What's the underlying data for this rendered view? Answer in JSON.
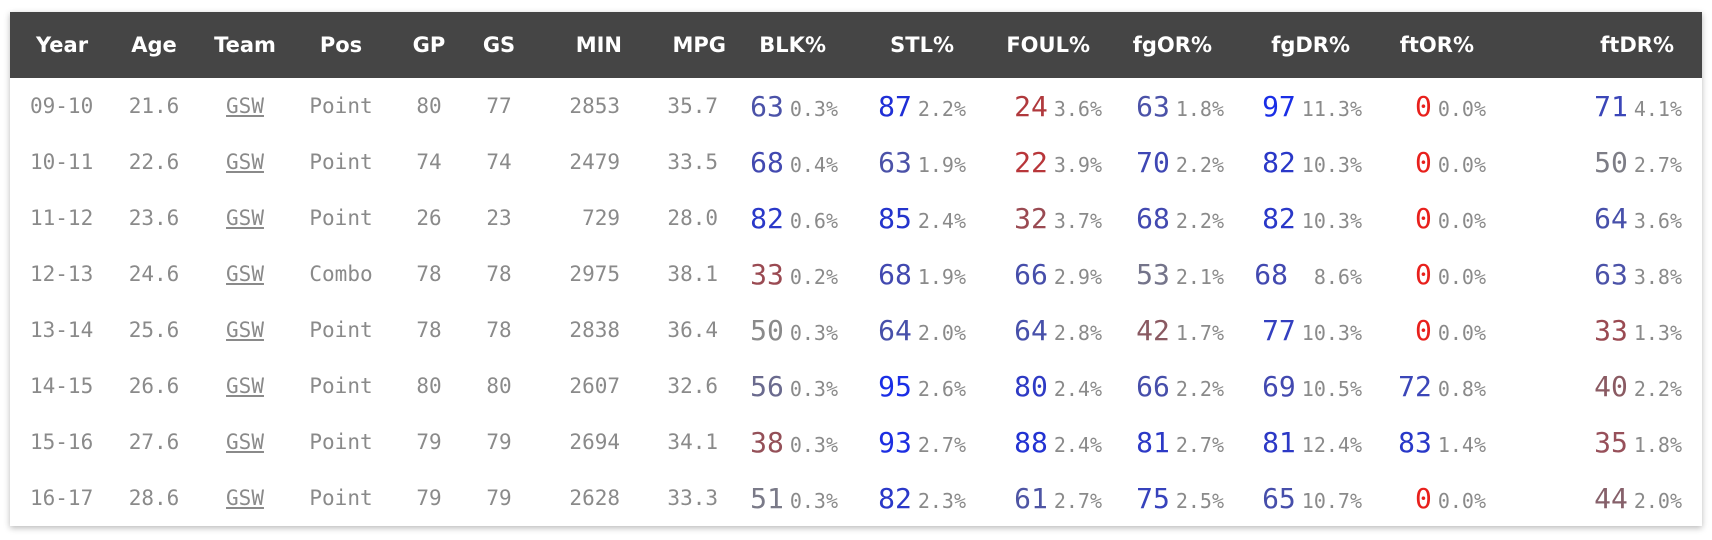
{
  "columns": [
    {
      "key": "year",
      "label": "Year"
    },
    {
      "key": "age",
      "label": "Age"
    },
    {
      "key": "team",
      "label": "Team"
    },
    {
      "key": "pos",
      "label": "Pos"
    },
    {
      "key": "gp",
      "label": "GP"
    },
    {
      "key": "gs",
      "label": "GS"
    },
    {
      "key": "min",
      "label": "MIN"
    },
    {
      "key": "mpg",
      "label": "MPG"
    },
    {
      "key": "blk",
      "label": "BLK%"
    },
    {
      "key": "stl",
      "label": "STL%"
    },
    {
      "key": "foul",
      "label": "FOUL%"
    },
    {
      "key": "fgor",
      "label": "fgOR%"
    },
    {
      "key": "fgdr",
      "label": "fgDR%"
    },
    {
      "key": "ftor",
      "label": "ftOR%"
    },
    {
      "key": "ftdr",
      "label": "ftDR%"
    }
  ],
  "rows": [
    {
      "year": "09-10",
      "age": "21.6",
      "team": "GSW",
      "pos": "Point",
      "gp": "80",
      "gs": "77",
      "min": "2853",
      "mpg": "35.7",
      "blk": {
        "rank": "63",
        "value": "0.3%",
        "color": "#4b52a8"
      },
      "stl": {
        "rank": "87",
        "value": "2.2%",
        "color": "#1f2fd6"
      },
      "foul": {
        "rank": "24",
        "value": "3.6%",
        "color": "#b0393d"
      },
      "fgor": {
        "rank": "63",
        "value": "1.8%",
        "color": "#4b52a8"
      },
      "fgdr": {
        "rank": "97",
        "value": "11.3%",
        "color": "#1a2ee6"
      },
      "ftor": {
        "rank": "0",
        "value": "0.0%",
        "color": "#e8201c"
      },
      "ftdr": {
        "rank": "71",
        "value": "4.1%",
        "color": "#3b46b8"
      }
    },
    {
      "year": "10-11",
      "age": "22.6",
      "team": "GSW",
      "pos": "Point",
      "gp": "74",
      "gs": "74",
      "min": "2479",
      "mpg": "33.5",
      "blk": {
        "rank": "68",
        "value": "0.4%",
        "color": "#4249b0"
      },
      "stl": {
        "rank": "63",
        "value": "1.9%",
        "color": "#4b52a8"
      },
      "foul": {
        "rank": "22",
        "value": "3.9%",
        "color": "#b8363a"
      },
      "fgor": {
        "rank": "70",
        "value": "2.2%",
        "color": "#3e47b4"
      },
      "fgdr": {
        "rank": "82",
        "value": "10.3%",
        "color": "#2a38c8"
      },
      "ftor": {
        "rank": "0",
        "value": "0.0%",
        "color": "#e8201c"
      },
      "ftdr": {
        "rank": "50",
        "value": "2.7%",
        "color": "#7d7d86"
      }
    },
    {
      "year": "11-12",
      "age": "23.6",
      "team": "GSW",
      "pos": "Point",
      "gp": "26",
      "gs": "23",
      "min": "729",
      "mpg": "28.0",
      "blk": {
        "rank": "82",
        "value": "0.6%",
        "color": "#2a38c8"
      },
      "stl": {
        "rank": "85",
        "value": "2.4%",
        "color": "#2434cc"
      },
      "foul": {
        "rank": "32",
        "value": "3.7%",
        "color": "#9a4a52"
      },
      "fgor": {
        "rank": "68",
        "value": "2.2%",
        "color": "#4249b0"
      },
      "fgdr": {
        "rank": "82",
        "value": "10.3%",
        "color": "#2a38c8"
      },
      "ftor": {
        "rank": "0",
        "value": "0.0%",
        "color": "#e8201c"
      },
      "ftdr": {
        "rank": "64",
        "value": "3.6%",
        "color": "#4750aa"
      }
    },
    {
      "year": "12-13",
      "age": "24.6",
      "team": "GSW",
      "pos": "Combo",
      "gp": "78",
      "gs": "78",
      "min": "2975",
      "mpg": "38.1",
      "blk": {
        "rank": "33",
        "value": "0.2%",
        "color": "#9a4a52"
      },
      "stl": {
        "rank": "68",
        "value": "1.9%",
        "color": "#4249b0"
      },
      "foul": {
        "rank": "66",
        "value": "2.9%",
        "color": "#464eaa"
      },
      "fgor": {
        "rank": "53",
        "value": "2.1%",
        "color": "#74748a"
      },
      "fgdr": {
        "rank": "68",
        "value": "8.6%",
        "color": "#4249b0"
      },
      "ftor": {
        "rank": "0",
        "value": "0.0%",
        "color": "#e8201c"
      },
      "ftdr": {
        "rank": "63",
        "value": "3.8%",
        "color": "#4b52a8"
      }
    },
    {
      "year": "13-14",
      "age": "25.6",
      "team": "GSW",
      "pos": "Point",
      "gp": "78",
      "gs": "78",
      "min": "2838",
      "mpg": "36.4",
      "blk": {
        "rank": "50",
        "value": "0.3%",
        "color": "#8a8a8a"
      },
      "stl": {
        "rank": "64",
        "value": "2.0%",
        "color": "#4750aa"
      },
      "foul": {
        "rank": "64",
        "value": "2.8%",
        "color": "#4750aa"
      },
      "fgor": {
        "rank": "42",
        "value": "1.7%",
        "color": "#8a5a62"
      },
      "fgdr": {
        "rank": "77",
        "value": "10.3%",
        "color": "#333fc0"
      },
      "ftor": {
        "rank": "0",
        "value": "0.0%",
        "color": "#e8201c"
      },
      "ftdr": {
        "rank": "33",
        "value": "1.3%",
        "color": "#9a4a52"
      }
    },
    {
      "year": "14-15",
      "age": "26.6",
      "team": "GSW",
      "pos": "Point",
      "gp": "80",
      "gs": "80",
      "min": "2607",
      "mpg": "32.6",
      "blk": {
        "rank": "56",
        "value": "0.3%",
        "color": "#6a6a8e"
      },
      "stl": {
        "rank": "95",
        "value": "2.6%",
        "color": "#1a2ee6"
      },
      "foul": {
        "rank": "80",
        "value": "2.4%",
        "color": "#2e3ac4"
      },
      "fgor": {
        "rank": "66",
        "value": "2.2%",
        "color": "#464eaa"
      },
      "fgdr": {
        "rank": "69",
        "value": "10.5%",
        "color": "#4249b0"
      },
      "ftor": {
        "rank": "72",
        "value": "0.8%",
        "color": "#3b46b8"
      },
      "ftdr": {
        "rank": "40",
        "value": "2.2%",
        "color": "#8a5a62"
      }
    },
    {
      "year": "15-16",
      "age": "27.6",
      "team": "GSW",
      "pos": "Point",
      "gp": "79",
      "gs": "79",
      "min": "2694",
      "mpg": "34.1",
      "blk": {
        "rank": "38",
        "value": "0.3%",
        "color": "#945058"
      },
      "stl": {
        "rank": "93",
        "value": "2.7%",
        "color": "#1c2ee2"
      },
      "foul": {
        "rank": "88",
        "value": "2.4%",
        "color": "#2232d2"
      },
      "fgor": {
        "rank": "81",
        "value": "2.7%",
        "color": "#2c39c6"
      },
      "fgdr": {
        "rank": "81",
        "value": "12.4%",
        "color": "#2c39c6"
      },
      "ftor": {
        "rank": "83",
        "value": "1.4%",
        "color": "#2838c8"
      },
      "ftdr": {
        "rank": "35",
        "value": "1.8%",
        "color": "#97505a"
      }
    },
    {
      "year": "16-17",
      "age": "28.6",
      "team": "GSW",
      "pos": "Point",
      "gp": "79",
      "gs": "79",
      "min": "2628",
      "mpg": "33.3",
      "blk": {
        "rank": "51",
        "value": "0.3%",
        "color": "#7a7a88"
      },
      "stl": {
        "rank": "82",
        "value": "2.3%",
        "color": "#2a38c8"
      },
      "foul": {
        "rank": "61",
        "value": "2.7%",
        "color": "#4e55a4"
      },
      "fgor": {
        "rank": "75",
        "value": "2.5%",
        "color": "#3642bc"
      },
      "fgdr": {
        "rank": "65",
        "value": "10.7%",
        "color": "#464eaa"
      },
      "ftor": {
        "rank": "0",
        "value": "0.0%",
        "color": "#e8201c"
      },
      "ftdr": {
        "rank": "44",
        "value": "2.0%",
        "color": "#86606a"
      }
    }
  ]
}
